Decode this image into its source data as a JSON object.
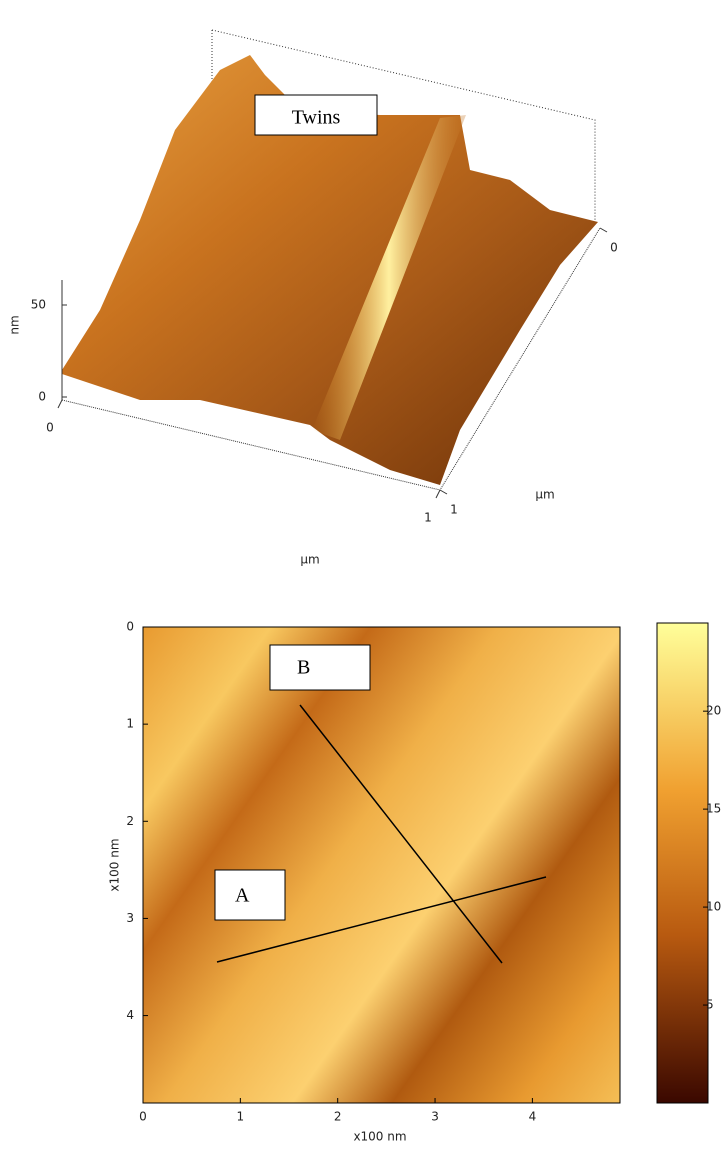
{
  "chart_data": [
    {
      "type": "surface",
      "annotation": "Twins",
      "zlabel": "nm",
      "zticks": [
        0,
        50
      ],
      "xlabel": "µm",
      "xticks": [
        0,
        1
      ],
      "ylabel": "µm",
      "yticks": [
        0,
        1
      ]
    },
    {
      "type": "heatmap",
      "annotations": [
        "B",
        "A"
      ],
      "xlabel": "x100 nm",
      "ylabel": "x100 nm",
      "xlim": [
        0,
        4.9
      ],
      "xticks": [
        0,
        1,
        2,
        3,
        4
      ],
      "ylim": [
        0,
        4.9
      ],
      "yticks": [
        0,
        1,
        2,
        3,
        4
      ],
      "colorbar_lim": [
        0,
        24.5
      ],
      "colorbar_ticks": [
        5,
        10,
        15,
        20
      ]
    }
  ]
}
